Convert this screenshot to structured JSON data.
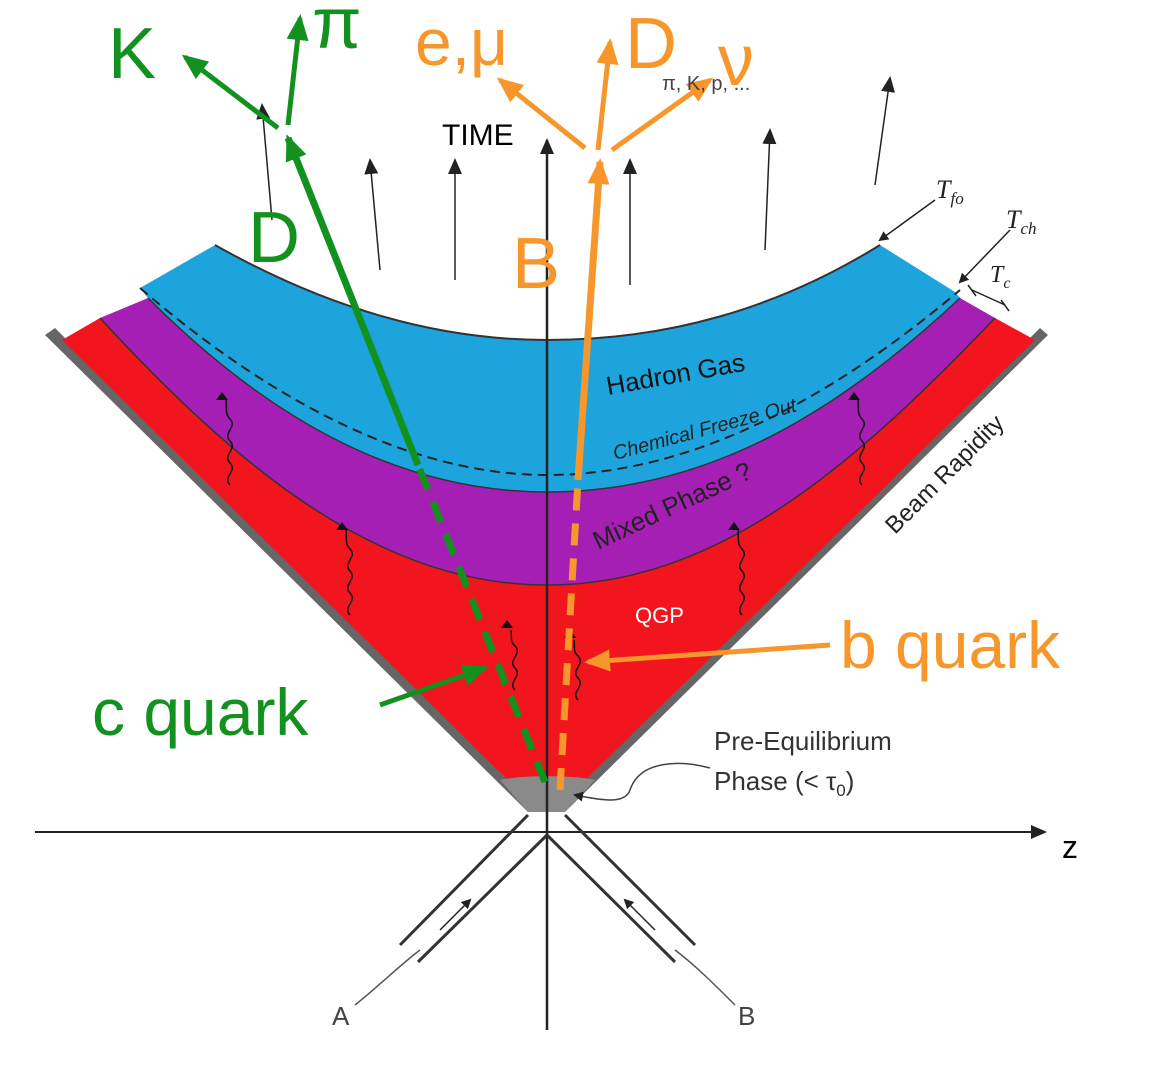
{
  "colors": {
    "hadron_gas": "#1ea4dc",
    "mixed_phase": "#a51fb5",
    "qgp": "#f2151e",
    "pre_equilibrium": "#8a8a8a",
    "charm": "#13911f",
    "bottom": "#f7962a",
    "axis": "#222222"
  },
  "labels": {
    "time": "TIME",
    "z_axis": "z",
    "freeze_out": "Freeze Out",
    "hadron_gas": "Hadron Gas",
    "chemical_freeze_out": "Chemical Freeze Out",
    "mixed_phase": "Mixed Phase ?",
    "qgp": "QGP",
    "beam_rapidity": "Beam Rapidity",
    "pre_equilibrium_line1": "Pre-Equilibrium",
    "pre_equilibrium_line2": "Phase (< τ",
    "pre_equilibrium_sub": "0",
    "pre_equilibrium_close": ")",
    "nucleus_a": "A",
    "nucleus_b": "B",
    "hadrons": "π, K, p, ...",
    "t_fo_main": "T",
    "t_fo_sub": "fo",
    "t_ch_main": "T",
    "t_ch_sub": "ch",
    "t_c_main": "T",
    "t_c_sub": "c"
  },
  "charm_path": {
    "quark": "c quark",
    "meson": "D",
    "decay1": "K",
    "decay2": "π"
  },
  "bottom_path": {
    "quark": "b quark",
    "meson": "B",
    "decay1": "e,μ",
    "decay2": "D",
    "decay3": "ν"
  },
  "icons": {
    "gluon": "wavy-arrow-icon",
    "flow": "arrow-icon"
  }
}
